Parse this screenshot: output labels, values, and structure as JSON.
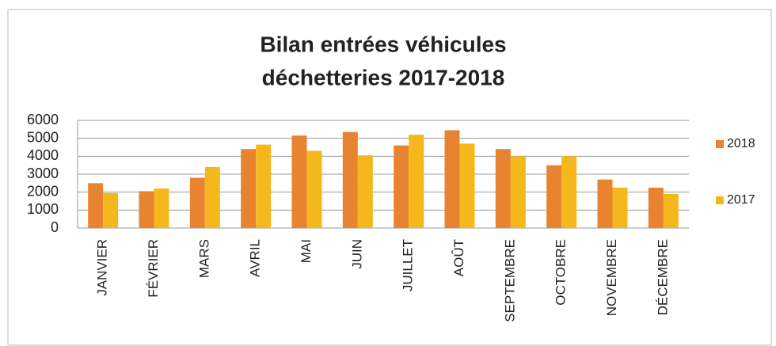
{
  "chart_data": {
    "type": "bar",
    "title": [
      "Bilan entrées véhicules",
      "déchetteries 2017-2018"
    ],
    "categories": [
      "JANVIER",
      "FÉVRIER",
      "MARS",
      "AVRIL",
      "MAI",
      "JUIN",
      "JUILLET",
      "AOÛT",
      "SEPTEMBRE",
      "OCTOBRE",
      "NOVEMBRE",
      "DÉCEMBRE"
    ],
    "series": [
      {
        "name": "2018",
        "color": "#e8832f",
        "values": [
          2500,
          2050,
          2800,
          4400,
          5150,
          5350,
          4600,
          5450,
          4400,
          3500,
          2700,
          2250
        ]
      },
      {
        "name": "2017",
        "color": "#f5b81c",
        "values": [
          1950,
          2200,
          3400,
          4650,
          4300,
          4050,
          5200,
          4700,
          4000,
          4000,
          2250,
          1900
        ]
      }
    ],
    "ylim": [
      0,
      6000
    ],
    "yticks": [
      0,
      1000,
      2000,
      3000,
      4000,
      5000,
      6000
    ],
    "grid": true,
    "legend": "right"
  }
}
